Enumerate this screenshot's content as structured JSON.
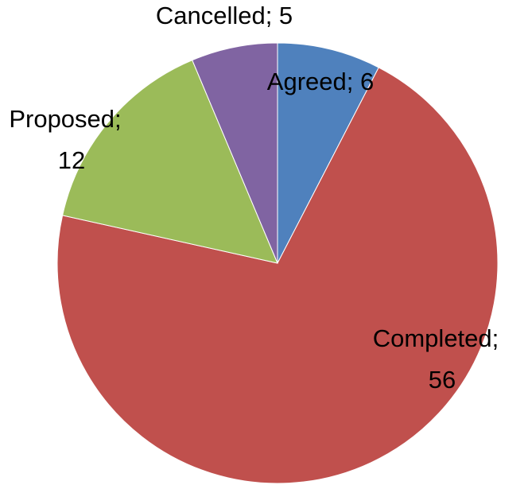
{
  "chart_data": {
    "type": "pie",
    "values": [
      6,
      56,
      12,
      5
    ],
    "value_labels": [
      "Agreed; 6",
      "Completed; 56",
      "Proposed; 12",
      "Cancelled; 5"
    ],
    "colors": [
      "#4f81bd",
      "#c0504d",
      "#9bbb59",
      "#8064a2"
    ]
  }
}
